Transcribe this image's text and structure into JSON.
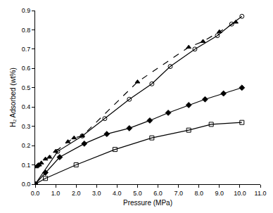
{
  "chart_data": {
    "type": "scatter",
    "x_label": "Pressure (MPa)",
    "y_label": "H₂ Adsorbed (wt%)",
    "xlim": [
      0,
      11
    ],
    "ylim": [
      0,
      0.9
    ],
    "xticks": [
      {
        "value": 0,
        "label": "0.0"
      },
      {
        "value": 1,
        "label": "1.0"
      },
      {
        "value": 2,
        "label": "2.0"
      },
      {
        "value": 3,
        "label": "3.0"
      },
      {
        "value": 4,
        "label": "4.0"
      },
      {
        "value": 5,
        "label": "5.0"
      },
      {
        "value": 6,
        "label": "6.0"
      },
      {
        "value": 7,
        "label": "7.0"
      },
      {
        "value": 8,
        "label": "8.0"
      },
      {
        "value": 9,
        "label": "9.0"
      },
      {
        "value": 10,
        "label": "10.0"
      },
      {
        "value": 11,
        "label": "11.0"
      }
    ],
    "yticks": [
      {
        "value": 0,
        "label": "0.0"
      },
      0.1,
      0.2,
      0.3,
      0.4,
      0.5,
      0.6,
      0.7,
      0.8,
      0.9
    ],
    "grid": false,
    "series": [
      {
        "color": "#000000",
        "marker": "triangle-up",
        "line_style": "dash",
        "x": [
          0.05,
          0.1,
          0.15,
          0.2,
          0.3,
          0.5,
          0.7,
          1.0,
          1.6,
          1.9,
          2.3,
          5.0,
          7.5,
          8.2,
          9.0,
          9.8
        ],
        "values": [
          0.09,
          0.095,
          0.1,
          0.1,
          0.11,
          0.13,
          0.14,
          0.17,
          0.22,
          0.24,
          0.25,
          0.53,
          0.71,
          0.74,
          0.79,
          0.84
        ]
      },
      {
        "color": "#000000",
        "marker": "circle-open",
        "line_style": "solid",
        "x": [
          0,
          1.1,
          2.3,
          3.4,
          4.6,
          5.7,
          6.6,
          7.8,
          8.9,
          9.6,
          10.1
        ],
        "values": [
          0,
          0.17,
          0.25,
          0.34,
          0.44,
          0.52,
          0.61,
          0.7,
          0.77,
          0.83,
          0.87
        ]
      },
      {
        "color": "#000000",
        "marker": "diamond",
        "line_style": "solid",
        "x": [
          0,
          0.5,
          1.2,
          2.4,
          3.5,
          4.6,
          5.6,
          6.5,
          7.5,
          8.3,
          9.2,
          10.1
        ],
        "values": [
          0,
          0.06,
          0.14,
          0.21,
          0.26,
          0.29,
          0.33,
          0.37,
          0.41,
          0.44,
          0.47,
          0.5
        ]
      },
      {
        "color": "#000000",
        "marker": "square-open",
        "line_style": "solid",
        "x": [
          0,
          0.5,
          2.0,
          3.9,
          5.7,
          7.5,
          8.6,
          10.1
        ],
        "values": [
          0,
          0.03,
          0.1,
          0.18,
          0.24,
          0.28,
          0.31,
          0.32
        ]
      }
    ]
  }
}
